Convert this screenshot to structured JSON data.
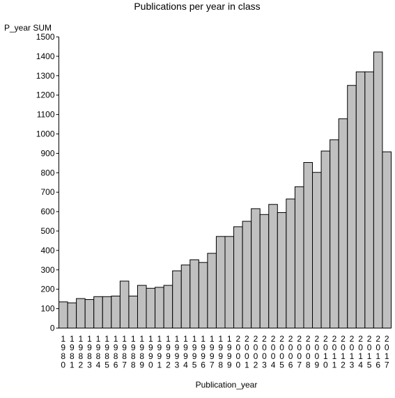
{
  "chart_data": {
    "type": "bar",
    "title": "Publications per year in class",
    "xlabel": "Publication_year",
    "ylabel": "P_year SUM",
    "ylim": [
      0,
      1500
    ],
    "yticks": [
      0,
      100,
      200,
      300,
      400,
      500,
      600,
      700,
      800,
      900,
      1000,
      1100,
      1200,
      1300,
      1400,
      1500
    ],
    "grid": false,
    "bar_color": "#c0c0c0",
    "categories": [
      "1980",
      "1981",
      "1982",
      "1983",
      "1984",
      "1985",
      "1986",
      "1987",
      "1988",
      "1989",
      "1990",
      "1991",
      "1992",
      "1993",
      "1994",
      "1995",
      "1996",
      "1997",
      "1998",
      "1999",
      "2000",
      "2001",
      "2002",
      "2003",
      "2004",
      "2005",
      "2006",
      "2007",
      "2008",
      "2009",
      "2010",
      "2011",
      "2012",
      "2013",
      "2014",
      "2015",
      "2016",
      "2017"
    ],
    "values": [
      135,
      130,
      152,
      147,
      162,
      162,
      165,
      242,
      165,
      220,
      205,
      210,
      220,
      295,
      325,
      352,
      338,
      385,
      472,
      472,
      522,
      550,
      615,
      585,
      637,
      595,
      665,
      728,
      853,
      802,
      912,
      970,
      1078,
      1250,
      1320,
      1320,
      1422,
      908
    ]
  }
}
